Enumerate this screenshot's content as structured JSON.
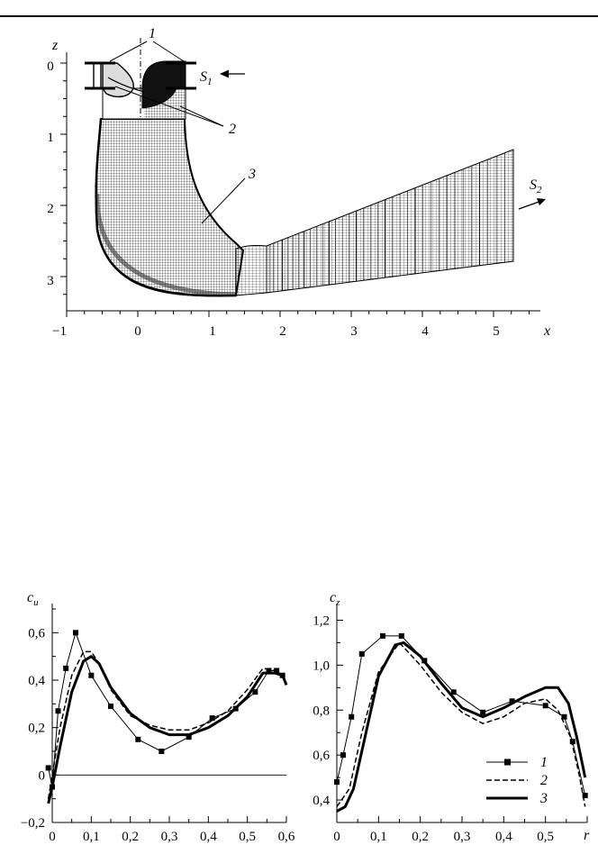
{
  "figure_top": {
    "axis_x": {
      "label": "x",
      "ticks": [
        "−1",
        "0",
        "1",
        "2",
        "3",
        "4",
        "5"
      ]
    },
    "axis_z": {
      "label": "z",
      "ticks": [
        "0",
        "1",
        "2",
        "3"
      ]
    },
    "callouts": {
      "one": "1",
      "two": "2",
      "three": "3",
      "s1": "S",
      "s1_sub": "1",
      "s2": "S",
      "s2_sub": "2"
    }
  },
  "chart_data": [
    {
      "type": "line",
      "ylabel": "c",
      "ylabel_sub": "u",
      "xlim": [
        0,
        0.6
      ],
      "ylim": [
        -0.2,
        0.7
      ],
      "x_ticks": [
        "0",
        "0,1",
        "0,2",
        "0,3",
        "0,4",
        "0,5",
        "0,6"
      ],
      "y_ticks": [
        "−0,2",
        "0",
        "0,2",
        "0,4",
        "0,6"
      ],
      "series": [
        {
          "name": "1",
          "style": "solid-thin-markers",
          "x": [
            -0.01,
            0.0,
            0.015,
            0.035,
            0.06,
            0.1,
            0.15,
            0.22,
            0.28,
            0.35,
            0.41,
            0.47,
            0.52,
            0.555,
            0.575,
            0.59
          ],
          "y": [
            0.03,
            -0.05,
            0.27,
            0.45,
            0.6,
            0.42,
            0.29,
            0.15,
            0.1,
            0.16,
            0.24,
            0.28,
            0.35,
            0.44,
            0.44,
            0.42
          ]
        },
        {
          "name": "2",
          "style": "dashed",
          "x": [
            -0.01,
            0.0,
            0.02,
            0.05,
            0.08,
            0.1,
            0.12,
            0.15,
            0.2,
            0.25,
            0.3,
            0.35,
            0.4,
            0.45,
            0.5,
            0.54,
            0.57,
            0.59,
            0.6
          ],
          "y": [
            -0.1,
            0.0,
            0.2,
            0.42,
            0.52,
            0.52,
            0.47,
            0.36,
            0.25,
            0.21,
            0.19,
            0.19,
            0.22,
            0.27,
            0.36,
            0.45,
            0.44,
            0.42,
            0.38
          ]
        },
        {
          "name": "3",
          "style": "solid-thick",
          "x": [
            -0.01,
            0.0,
            0.02,
            0.05,
            0.08,
            0.1,
            0.12,
            0.15,
            0.2,
            0.25,
            0.3,
            0.35,
            0.4,
            0.45,
            0.5,
            0.54,
            0.57,
            0.59,
            0.6
          ],
          "y": [
            -0.12,
            -0.05,
            0.12,
            0.35,
            0.48,
            0.5,
            0.47,
            0.37,
            0.26,
            0.2,
            0.17,
            0.17,
            0.2,
            0.25,
            0.33,
            0.43,
            0.43,
            0.42,
            0.38
          ]
        }
      ]
    },
    {
      "type": "line",
      "ylabel": "c",
      "ylabel_sub": "z",
      "xlabel": "r",
      "xlim": [
        0,
        0.6
      ],
      "ylim": [
        0.3,
        1.25
      ],
      "x_ticks": [
        "0",
        "0,1",
        "0,2",
        "0,3",
        "0,4",
        "0,5"
      ],
      "y_ticks": [
        "0,4",
        "0,6",
        "0,8",
        "1,0",
        "1,2"
      ],
      "legend": {
        "placement": "bottom-right",
        "entries": [
          "1",
          "2",
          "3"
        ]
      },
      "series": [
        {
          "name": "1",
          "style": "solid-thin-markers",
          "x": [
            0.0,
            0.015,
            0.035,
            0.06,
            0.11,
            0.155,
            0.21,
            0.28,
            0.35,
            0.42,
            0.5,
            0.545,
            0.565,
            0.595
          ],
          "y": [
            0.48,
            0.6,
            0.77,
            1.05,
            1.13,
            1.13,
            1.02,
            0.88,
            0.79,
            0.84,
            0.82,
            0.77,
            0.66,
            0.42
          ]
        },
        {
          "name": "2",
          "style": "dashed",
          "x": [
            0.0,
            0.03,
            0.06,
            0.1,
            0.15,
            0.2,
            0.25,
            0.3,
            0.35,
            0.4,
            0.45,
            0.5,
            0.53,
            0.56,
            0.58,
            0.595
          ],
          "y": [
            0.37,
            0.45,
            0.7,
            0.97,
            1.1,
            1.0,
            0.88,
            0.79,
            0.74,
            0.77,
            0.83,
            0.85,
            0.8,
            0.68,
            0.52,
            0.37
          ]
        },
        {
          "name": "3",
          "style": "solid-thick",
          "x": [
            0.0,
            0.02,
            0.04,
            0.07,
            0.1,
            0.14,
            0.16,
            0.2,
            0.25,
            0.3,
            0.35,
            0.4,
            0.45,
            0.5,
            0.53,
            0.555,
            0.575,
            0.595
          ],
          "y": [
            0.35,
            0.37,
            0.45,
            0.7,
            0.95,
            1.09,
            1.1,
            1.04,
            0.92,
            0.81,
            0.77,
            0.81,
            0.86,
            0.9,
            0.9,
            0.83,
            0.68,
            0.5
          ]
        }
      ]
    }
  ]
}
